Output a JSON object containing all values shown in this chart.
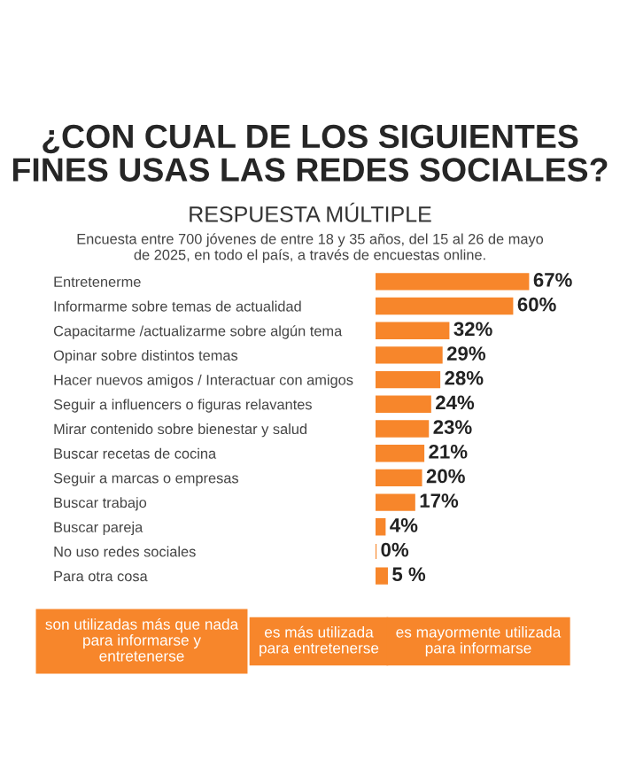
{
  "chart_data": {
    "type": "bar",
    "orientation": "horizontal",
    "title": "¿CON CUAL DE LOS SIGUIENTES\nFINES USAS LAS REDES SOCIALES?",
    "subtitle": "RESPUESTA MÚLTIPLE",
    "annotations": [
      "Encuesta entre 700 jóvenes de entre 18 y 35 años, del 15 al 26 de mayo\nde 2025, en todo el país, a través de encuestas online.",
      "son utilizadas más que nada\npara informarse y\nentretenerse",
      "es más utilizada\npara entretenerse",
      "es mayormente utilizada\npara informarse"
    ],
    "categories": [
      "Entretenerme",
      "Informarme sobre temas de actualidad",
      "Capacitarme /actualizarme sobre algún tema",
      "Opinar sobre distintos temas",
      "Hacer nuevos amigos / Interactuar con amigos",
      "Seguir a influencers o figuras relavantes",
      "Mirar contenido sobre bienestar y salud",
      "Buscar recetas de cocina",
      "Seguir a marcas o empresas",
      "Buscar trabajo",
      "Buscar pareja",
      "No uso redes sociales",
      "Para otra cosa"
    ],
    "values": [
      67,
      60,
      32,
      29,
      28,
      24,
      23,
      21,
      20,
      17,
      4,
      0,
      5
    ],
    "value_labels": [
      "67%",
      "60%",
      "32%",
      "29%",
      "28%",
      "24%",
      "23%",
      "21%",
      "20%",
      "17%",
      "4%",
      "0%",
      "5 %"
    ],
    "color": "#f7862b",
    "grid": false,
    "legend": false
  }
}
